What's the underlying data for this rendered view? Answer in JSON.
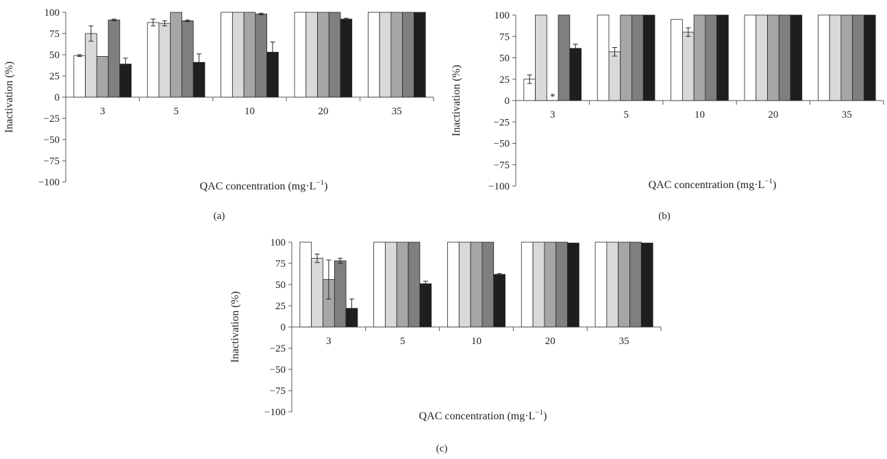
{
  "figure": {
    "bar_colors": [
      "#ffffff",
      "#d9d9d9",
      "#a6a6a6",
      "#7f7f7f",
      "#1e1e1e"
    ],
    "bar_outline": "#222222"
  },
  "chart_data": [
    {
      "type": "bar",
      "panel": "(a)",
      "xlabel": "QAC concentration (mg·L",
      "xlabel_sup": "−1",
      "xlabel_close": ")",
      "ylabel": "Inactivation (%)",
      "ylim": [
        -100,
        100
      ],
      "yticks": [
        100,
        75,
        50,
        25,
        0,
        -25,
        -50,
        -75,
        -100
      ],
      "ytick_labels": [
        "100",
        "75",
        "50",
        "25",
        "0",
        "−25",
        "−50",
        "−75",
        "−100"
      ],
      "categories": [
        "3",
        "5",
        "10",
        "20",
        "35"
      ],
      "grid": false,
      "series": [
        {
          "values": [
            49,
            88,
            100,
            100,
            100
          ],
          "errors": [
            1,
            4,
            0,
            0,
            0
          ]
        },
        {
          "values": [
            75,
            87,
            100,
            100,
            100
          ],
          "errors": [
            9,
            3,
            0,
            0,
            0
          ]
        },
        {
          "values": [
            48,
            100,
            100,
            100,
            100
          ],
          "errors": [
            0,
            0,
            0,
            0,
            0
          ]
        },
        {
          "values": [
            91,
            90,
            98,
            100,
            100
          ],
          "errors": [
            1,
            1,
            1,
            0,
            0
          ]
        },
        {
          "values": [
            39,
            41,
            53,
            92,
            100
          ],
          "errors": [
            7,
            10,
            12,
            1,
            0
          ]
        }
      ],
      "annotations": []
    },
    {
      "type": "bar",
      "panel": "(b)",
      "xlabel": "QAC concentration (mg·L",
      "xlabel_sup": "−1",
      "xlabel_close": ")",
      "ylabel": "Inactivation (%)",
      "ylim": [
        -100,
        100
      ],
      "yticks": [
        100,
        75,
        50,
        25,
        0,
        -25,
        -50,
        -75,
        -100
      ],
      "ytick_labels": [
        "100",
        "75",
        "50",
        "25",
        "0",
        "−25",
        "−50",
        "−75",
        "−100"
      ],
      "categories": [
        "3",
        "5",
        "10",
        "20",
        "35"
      ],
      "grid": false,
      "series": [
        {
          "values": [
            25,
            100,
            95,
            100,
            100
          ],
          "errors": [
            5,
            0,
            0,
            0,
            0
          ]
        },
        {
          "values": [
            100,
            57,
            80,
            100,
            100
          ],
          "errors": [
            0,
            5,
            5,
            0,
            0
          ]
        },
        {
          "values": [
            0,
            100,
            100,
            100,
            100
          ],
          "errors": [
            0,
            0,
            0,
            0,
            0
          ]
        },
        {
          "values": [
            100,
            100,
            100,
            100,
            100
          ],
          "errors": [
            0,
            0,
            0,
            0,
            0
          ]
        },
        {
          "values": [
            61,
            100,
            100,
            100,
            100
          ],
          "errors": [
            5,
            0,
            0,
            0,
            0
          ]
        }
      ],
      "annotations": [
        {
          "category": "3",
          "series_index": 2,
          "text": "*"
        }
      ]
    },
    {
      "type": "bar",
      "panel": "(c)",
      "xlabel": "QAC concentration (mg·L",
      "xlabel_sup": "−1",
      "xlabel_close": ")",
      "ylabel": "Inactivation (%)",
      "ylim": [
        -100,
        100
      ],
      "yticks": [
        100,
        75,
        50,
        25,
        0,
        -25,
        -50,
        -75,
        -100
      ],
      "ytick_labels": [
        "100",
        "75",
        "50",
        "25",
        "0",
        "−25",
        "−50",
        "−75",
        "−100"
      ],
      "categories": [
        "3",
        "5",
        "10",
        "20",
        "35"
      ],
      "grid": false,
      "series": [
        {
          "values": [
            100,
            100,
            100,
            100,
            100
          ],
          "errors": [
            0,
            0,
            0,
            0,
            0
          ]
        },
        {
          "values": [
            81,
            100,
            100,
            100,
            100
          ],
          "errors": [
            5,
            0,
            0,
            0,
            0
          ]
        },
        {
          "values": [
            56,
            100,
            100,
            100,
            100
          ],
          "errors": [
            23,
            0,
            0,
            0,
            0
          ]
        },
        {
          "values": [
            78,
            100,
            100,
            100,
            100
          ],
          "errors": [
            3,
            0,
            0,
            0,
            0
          ]
        },
        {
          "values": [
            22,
            51,
            62,
            99,
            99
          ],
          "errors": [
            11,
            3,
            1,
            0,
            0
          ]
        }
      ],
      "annotations": []
    }
  ]
}
